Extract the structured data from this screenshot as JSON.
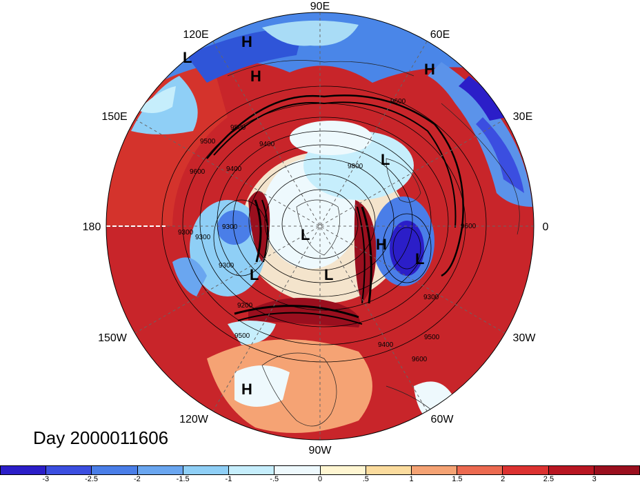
{
  "map": {
    "projection": "north-polar-stereographic",
    "longitude_labels": [
      {
        "id": "lon-90e",
        "text": "90E"
      },
      {
        "id": "lon-60e",
        "text": "60E"
      },
      {
        "id": "lon-30e",
        "text": "30E"
      },
      {
        "id": "lon-0",
        "text": "0"
      },
      {
        "id": "lon-30w",
        "text": "30W"
      },
      {
        "id": "lon-60w",
        "text": "60W"
      },
      {
        "id": "lon-90w",
        "text": "90W"
      },
      {
        "id": "lon-120w",
        "text": "120W"
      },
      {
        "id": "lon-150w",
        "text": "150W"
      },
      {
        "id": "lon-180",
        "text": "180"
      },
      {
        "id": "lon-150e",
        "text": "150E"
      },
      {
        "id": "lon-120e",
        "text": "120E"
      }
    ],
    "pressure_centers": [
      "H",
      "H",
      "L",
      "H",
      "H",
      "L",
      "L",
      "L",
      "H",
      "L",
      "L",
      "H"
    ],
    "contour_labels": [
      "9600",
      "9500",
      "9400",
      "9300",
      "9300",
      "9300",
      "9200",
      "9500",
      "9400",
      "9500",
      "9600",
      "9300",
      "9600",
      "9600",
      "9500",
      "9400",
      "9300",
      "9800"
    ],
    "contour_field_values": [
      9200,
      9300,
      9400,
      9500,
      9600,
      9800
    ]
  },
  "footer": {
    "day_text": "Day 2000011606"
  },
  "colorbar": {
    "colors": [
      "#2b1ec8",
      "#3b4ee0",
      "#4a7ee8",
      "#6aa6f0",
      "#8fcff6",
      "#c6eefc",
      "#eef9fd",
      "#fff6d2",
      "#fbdc9e",
      "#f5a374",
      "#ec6a50",
      "#dc3231",
      "#b81622",
      "#9a0f1e"
    ],
    "tick_labels": [
      "-3",
      "-2.5",
      "-2",
      "-1.5",
      "-1",
      "-.5",
      "0",
      ".5",
      "1",
      "1.5",
      "2",
      "2.5",
      "3"
    ]
  }
}
